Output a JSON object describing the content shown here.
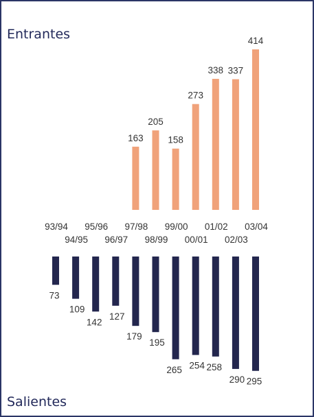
{
  "chart_data": {
    "type": "bar",
    "title_top": "Entrantes",
    "title_bottom": "Salientes",
    "categories": [
      "93/94",
      "94/95",
      "95/96",
      "96/97",
      "97/98",
      "98/99",
      "99/00",
      "00/01",
      "01/02",
      "02/03",
      "03/04"
    ],
    "series": [
      {
        "name": "Entrantes",
        "values": [
          null,
          null,
          null,
          null,
          163,
          205,
          158,
          273,
          338,
          337,
          414
        ]
      },
      {
        "name": "Salientes",
        "values": [
          73,
          109,
          142,
          127,
          179,
          195,
          265,
          254,
          258,
          290,
          295
        ]
      }
    ],
    "ylim": [
      0,
      414
    ],
    "grid": false,
    "legend": "none",
    "colors": {
      "entrantes": "#f0a27a",
      "salientes": "#23264e",
      "heading": "#22295a",
      "frame": "#2b3566"
    }
  }
}
